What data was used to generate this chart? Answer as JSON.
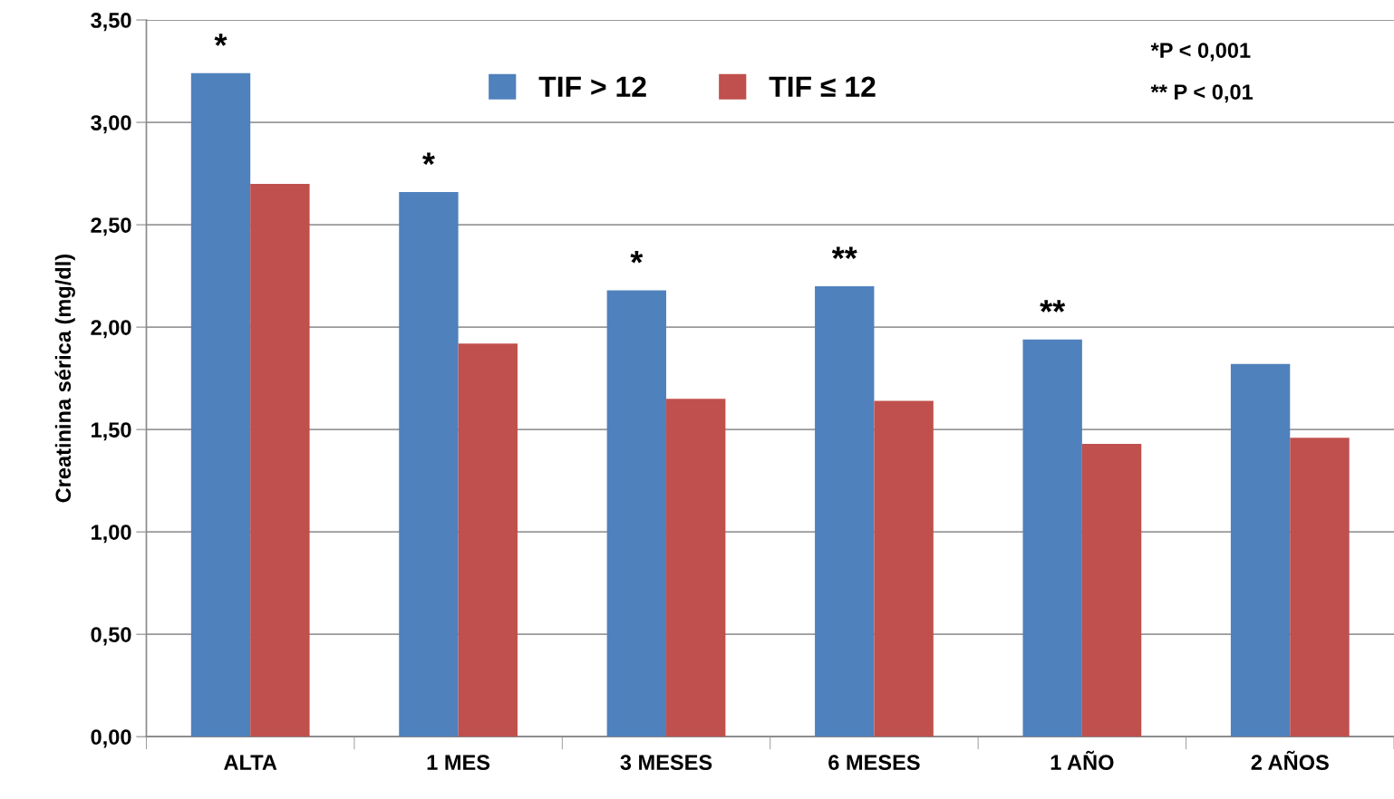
{
  "chart_data": {
    "type": "bar",
    "ylabel": "Creatinina sérica (mg/dl)",
    "categories": [
      "ALTA",
      "1 MES",
      "3 MESES",
      "6 MESES",
      "1 AÑO",
      "2 AÑOS"
    ],
    "series": [
      {
        "name": "TIF > 12",
        "color": "#4f81bd",
        "values": [
          3.24,
          2.66,
          2.18,
          2.2,
          1.94,
          1.82
        ]
      },
      {
        "name": "TIF ≤ 12",
        "color": "#c0504d",
        "values": [
          2.7,
          1.92,
          1.65,
          1.64,
          1.43,
          1.46
        ]
      }
    ],
    "ylim": [
      0,
      3.5
    ],
    "yticks": [
      {
        "value": 0,
        "label": "0,00"
      },
      {
        "value": 0.5,
        "label": "0,50"
      },
      {
        "value": 1,
        "label": "1,00"
      },
      {
        "value": 1.5,
        "label": "1,50"
      },
      {
        "value": 2,
        "label": "2,00"
      },
      {
        "value": 2.5,
        "label": "2,50"
      },
      {
        "value": 3,
        "label": "3,00"
      },
      {
        "value": 3.5,
        "label": "3,50"
      }
    ],
    "grid": "y",
    "legend": "top",
    "annotations": [
      {
        "text": "*",
        "x": "ALTA",
        "y": 3.24
      },
      {
        "text": "*",
        "x": "1 MES",
        "y": 2.66
      },
      {
        "text": "*",
        "x": "3 MESES",
        "y": 2.18
      },
      {
        "text": "**",
        "x": "6 MESES",
        "y": 2.2
      },
      {
        "text": "**",
        "x": "1 AÑO",
        "y": 1.94
      },
      "*P < 0,001",
      "** P < 0,01"
    ]
  }
}
